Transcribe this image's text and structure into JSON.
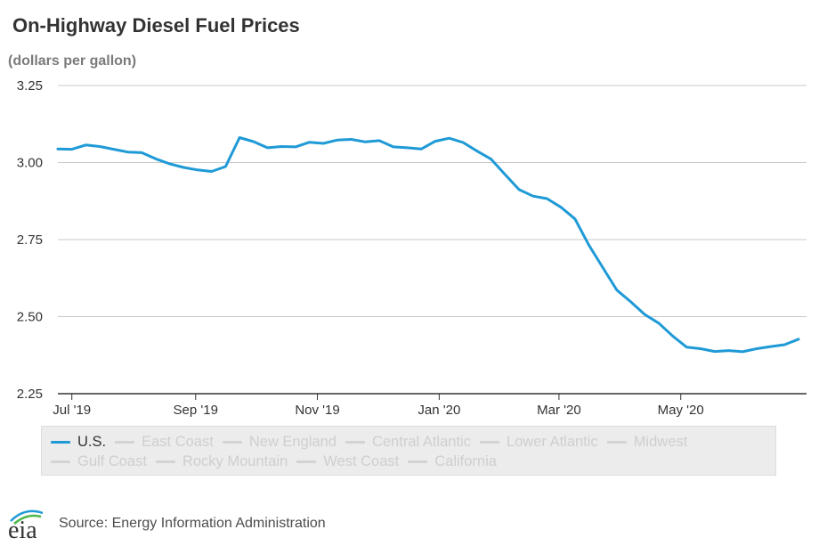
{
  "title": "On-Highway Diesel Fuel Prices",
  "units": "(dollars per gallon)",
  "source": "Source: Energy Information Administration",
  "logo_text": "eia",
  "colors": {
    "us": "#1f9ad6",
    "inactive": "#d3d3d3",
    "grid": "#c8c8c8",
    "axis": "#333333"
  },
  "legend": {
    "rows": [
      [
        {
          "label": "U.S.",
          "active": true
        },
        {
          "label": "East Coast",
          "active": false
        },
        {
          "label": "New England",
          "active": false
        },
        {
          "label": "Central Atlantic",
          "active": false
        },
        {
          "label": "Lower Atlantic",
          "active": false
        },
        {
          "label": "Midwest",
          "active": false
        }
      ],
      [
        {
          "label": "Gulf Coast",
          "active": false
        },
        {
          "label": "Rocky Mountain",
          "active": false
        },
        {
          "label": "West Coast",
          "active": false
        },
        {
          "label": "California",
          "active": false
        }
      ]
    ]
  },
  "chart_data": {
    "type": "line",
    "title": "On-Highway Diesel Fuel Prices",
    "ylabel": "(dollars per gallon)",
    "ylim": [
      2.25,
      3.25
    ],
    "yticks": [
      "3.25",
      "3.00",
      "2.75",
      "2.50",
      "2.25"
    ],
    "grid": true,
    "legend_position": "bottom",
    "x_ticks": [
      {
        "label": "Jul '19",
        "date": "2019-07-01"
      },
      {
        "label": "Sep '19",
        "date": "2019-09-01"
      },
      {
        "label": "Nov '19",
        "date": "2019-11-01"
      },
      {
        "label": "Jan '20",
        "date": "2020-01-01"
      },
      {
        "label": "Mar '20",
        "date": "2020-03-01"
      },
      {
        "label": "May '20",
        "date": "2020-05-01"
      }
    ],
    "x_range": [
      "2019-06-24",
      "2020-07-03"
    ],
    "series": [
      {
        "name": "U.S.",
        "x": [
          "2019-06-24",
          "2019-07-01",
          "2019-07-08",
          "2019-07-15",
          "2019-07-22",
          "2019-07-29",
          "2019-08-05",
          "2019-08-12",
          "2019-08-19",
          "2019-08-26",
          "2019-09-02",
          "2019-09-09",
          "2019-09-16",
          "2019-09-23",
          "2019-09-30",
          "2019-10-07",
          "2019-10-14",
          "2019-10-21",
          "2019-10-28",
          "2019-11-04",
          "2019-11-11",
          "2019-11-18",
          "2019-11-25",
          "2019-12-02",
          "2019-12-09",
          "2019-12-16",
          "2019-12-23",
          "2019-12-30",
          "2020-01-06",
          "2020-01-13",
          "2020-01-20",
          "2020-01-27",
          "2020-02-03",
          "2020-02-10",
          "2020-02-17",
          "2020-02-24",
          "2020-03-02",
          "2020-03-09",
          "2020-03-16",
          "2020-03-23",
          "2020-03-30",
          "2020-04-06",
          "2020-04-13",
          "2020-04-20",
          "2020-04-27",
          "2020-05-04",
          "2020-05-11",
          "2020-05-18",
          "2020-05-25",
          "2020-06-01",
          "2020-06-08",
          "2020-06-15",
          "2020-06-22",
          "2020-06-29"
        ],
        "values": [
          3.044,
          3.043,
          3.057,
          3.052,
          3.043,
          3.034,
          3.032,
          3.012,
          2.996,
          2.984,
          2.976,
          2.971,
          2.987,
          3.081,
          3.068,
          3.048,
          3.052,
          3.051,
          3.066,
          3.062,
          3.073,
          3.075,
          3.067,
          3.071,
          3.051,
          3.048,
          3.044,
          3.069,
          3.079,
          3.065,
          3.037,
          3.011,
          2.961,
          2.912,
          2.891,
          2.883,
          2.855,
          2.817,
          2.732,
          2.659,
          2.586,
          2.548,
          2.507,
          2.479,
          2.437,
          2.401,
          2.396,
          2.387,
          2.39,
          2.386,
          2.396,
          2.403,
          2.409,
          2.427
        ]
      }
    ]
  }
}
